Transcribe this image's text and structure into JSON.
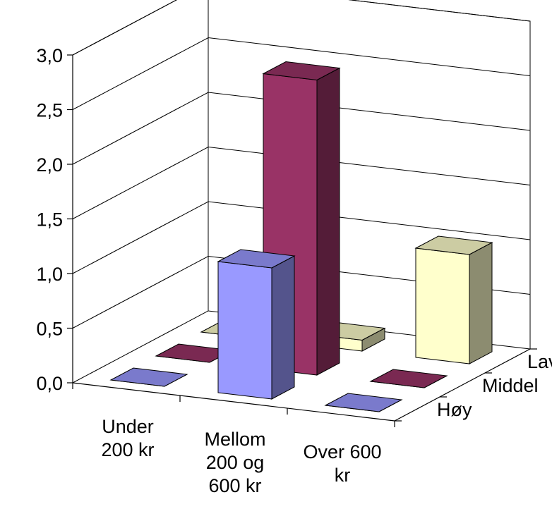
{
  "chart_data": {
    "type": "bar",
    "subtype": "3d-column",
    "categories": [
      "Under 200 kr",
      "Mellom 200 og 600 kr",
      "Over 600 kr"
    ],
    "category_label_lines": [
      [
        "Under",
        "200 kr"
      ],
      [
        "Mellom",
        "200 og",
        "600 kr"
      ],
      [
        "Over 600",
        "kr"
      ]
    ],
    "series": [
      {
        "name": "Høy",
        "values": [
          0.0,
          1.2,
          0.0
        ],
        "color": "#9999FF"
      },
      {
        "name": "Middel",
        "values": [
          0.0,
          2.7,
          0.0
        ],
        "color": "#993366"
      },
      {
        "name": "Lav",
        "values": [
          0.0,
          0.1,
          1.0
        ],
        "color": "#FFFFCC"
      }
    ],
    "y_ticks": [
      "0,0",
      "0,5",
      "1,0",
      "1,5",
      "2,0",
      "2,5",
      "3,0"
    ],
    "ylim": [
      0,
      3.0
    ],
    "grid": true,
    "series_axis_placement": "right-depth"
  }
}
